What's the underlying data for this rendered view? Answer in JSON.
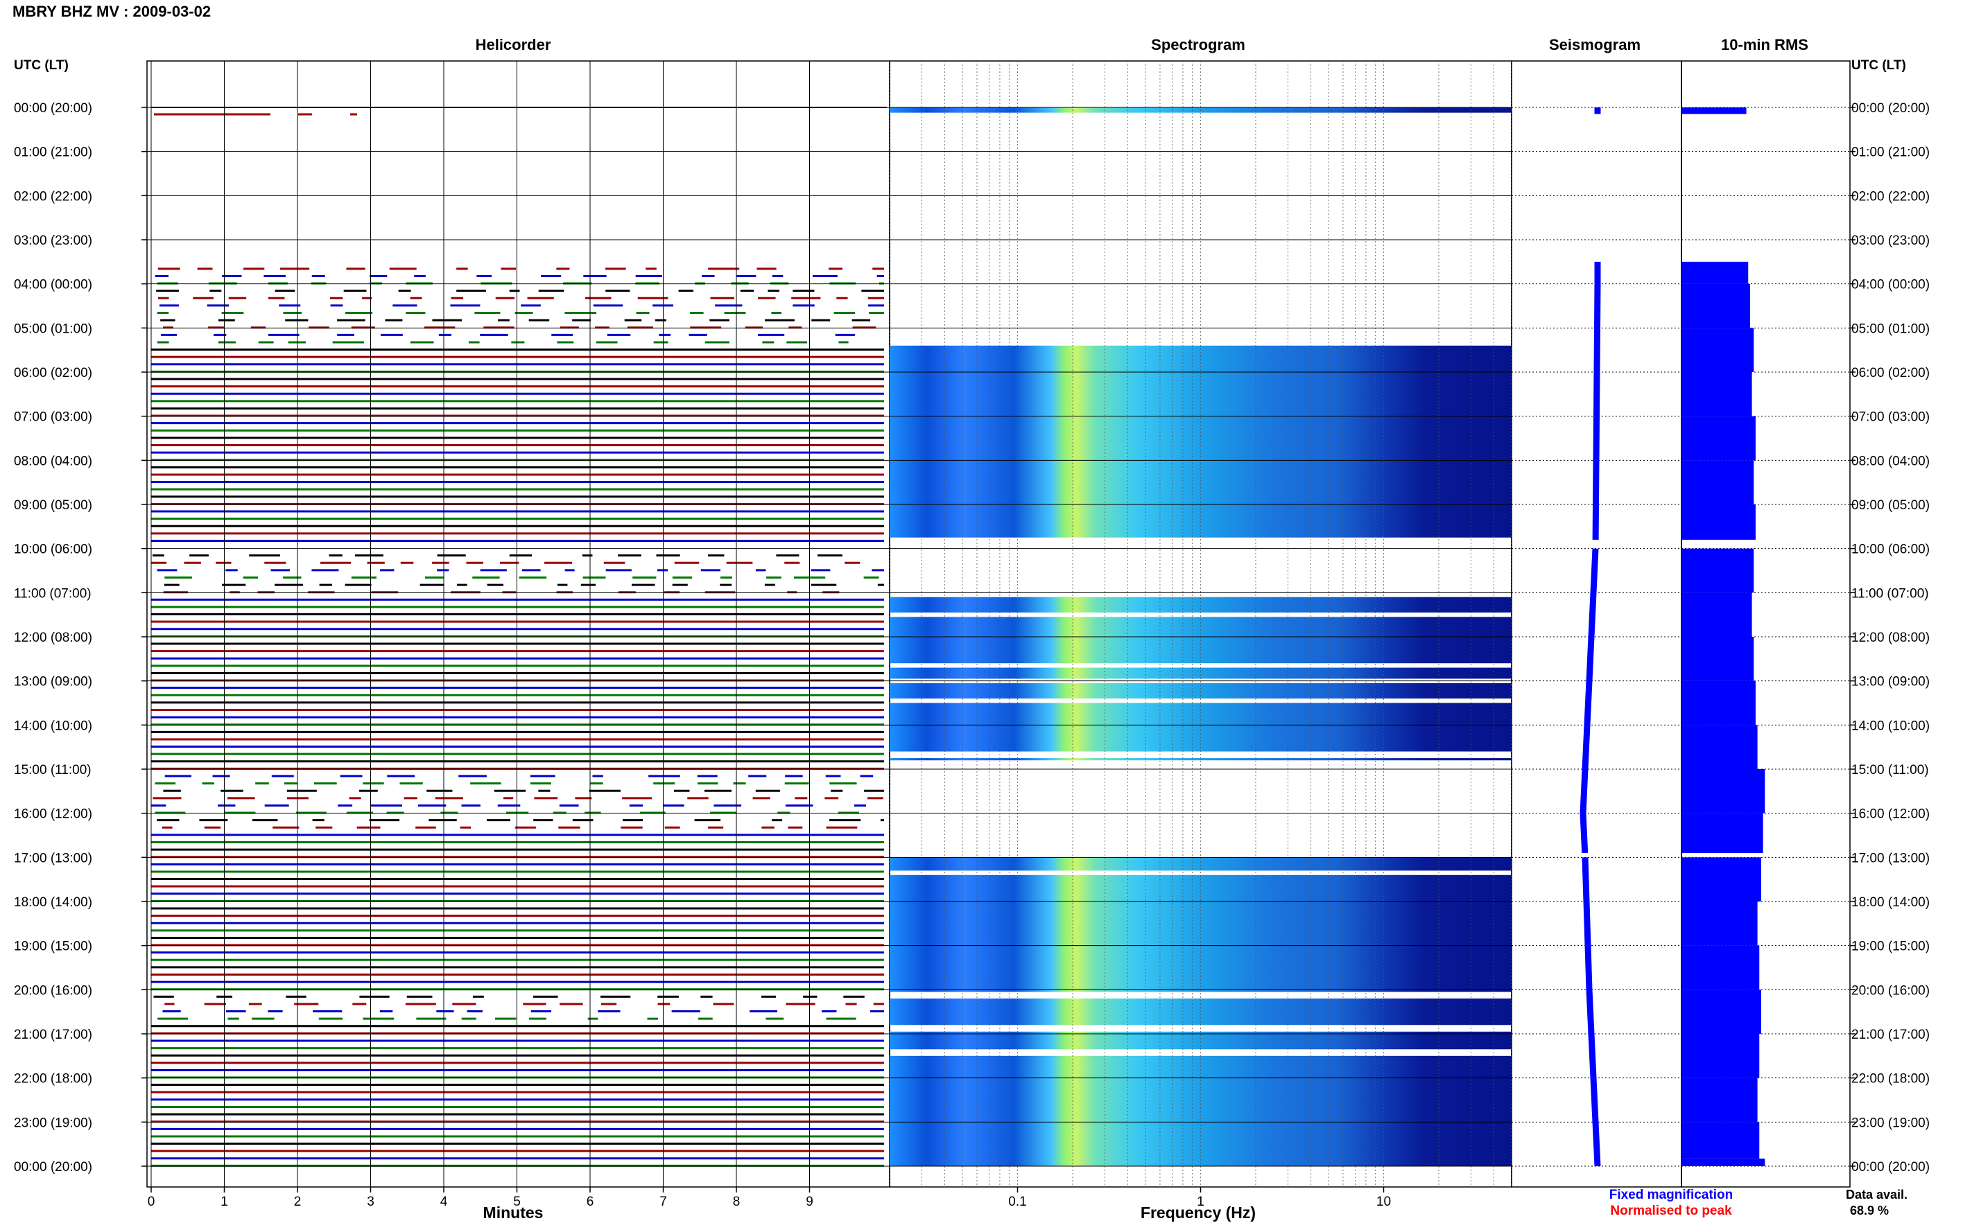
{
  "header": {
    "station_title": "MBRY BHZ MV : 2009-03-02"
  },
  "panels": {
    "helicorder": "Helicorder",
    "spectrogram": "Spectrogram",
    "seismogram": "Seismogram",
    "rms": "10-min RMS"
  },
  "axis": {
    "left_time_header": "UTC (LT)",
    "right_time_header": "UTC (LT)",
    "minutes_label": "Minutes",
    "frequency_label": "Frequency (Hz)"
  },
  "legend": {
    "fixed_label": "Fixed magnification",
    "fixed_color": "#0000ff",
    "normalised_label": "Normalised to peak",
    "normalised_color": "#ff0000"
  },
  "data_avail": {
    "label": "Data avail.",
    "value": "68.9 %"
  },
  "colors": {
    "trace_black": "#000000",
    "trace_red": "#990000",
    "trace_blue": "#0000cc",
    "trace_green": "#007700",
    "rms_bar": "#0000ff",
    "grid": "#000000"
  },
  "chart_data": {
    "type": "heatmap",
    "title": "MBRY BHZ MV : 2009-03-02",
    "hour_labels": [
      "00:00 (20:00)",
      "01:00 (21:00)",
      "02:00 (22:00)",
      "03:00 (23:00)",
      "04:00 (00:00)",
      "05:00 (01:00)",
      "06:00 (02:00)",
      "07:00 (03:00)",
      "08:00 (04:00)",
      "09:00 (05:00)",
      "10:00 (06:00)",
      "11:00 (07:00)",
      "12:00 (08:00)",
      "13:00 (09:00)",
      "14:00 (10:00)",
      "15:00 (11:00)",
      "16:00 (12:00)",
      "17:00 (13:00)",
      "18:00 (14:00)",
      "19:00 (15:00)",
      "20:00 (16:00)",
      "21:00 (17:00)",
      "22:00 (18:00)",
      "23:00 (19:00)",
      "00:00 (20:00)"
    ],
    "minutes_ticks": [
      0,
      1,
      2,
      3,
      4,
      5,
      6,
      7,
      8,
      9
    ],
    "minutes_range": [
      0,
      10
    ],
    "frequency_ticks": [
      0.1,
      1,
      10
    ],
    "frequency_range": [
      0.02,
      50
    ],
    "frequency_scale": "log",
    "data_availability_percent": 68.9,
    "data_segments_utc_hours": [
      [
        0.0,
        0.15
      ],
      [
        3.5,
        9.8
      ],
      [
        10.0,
        16.9
      ],
      [
        17.0,
        24.0
      ]
    ],
    "spectrogram_segments_utc_hours": [
      [
        0.0,
        0.12
      ],
      [
        5.4,
        9.75
      ],
      [
        11.1,
        11.45
      ],
      [
        11.55,
        12.6
      ],
      [
        12.7,
        12.95
      ],
      [
        13.05,
        13.4
      ],
      [
        13.5,
        14.6
      ],
      [
        14.75,
        14.8
      ],
      [
        17.0,
        17.3
      ],
      [
        17.4,
        20.05
      ],
      [
        20.2,
        20.8
      ],
      [
        20.95,
        21.35
      ],
      [
        21.5,
        24.0
      ]
    ],
    "seismogram_x_drift": [
      {
        "hour": 0.0,
        "offset": 0.0
      },
      {
        "hour": 4.0,
        "offset": 0.0
      },
      {
        "hour": 10.0,
        "offset": -0.5
      },
      {
        "hour": 16.0,
        "offset": -3.5
      },
      {
        "hour": 17.0,
        "offset": -3.0
      },
      {
        "hour": 20.0,
        "offset": -2.0
      },
      {
        "hour": 24.0,
        "offset": 0.0
      }
    ],
    "rms_10min": [
      {
        "hour": 0.0,
        "value": 0.7
      },
      {
        "hour": 0.17,
        "value": 0.9
      },
      {
        "hour": 3.5,
        "value": 0.72
      },
      {
        "hour": 4.0,
        "value": 0.74
      },
      {
        "hour": 5.0,
        "value": 0.78
      },
      {
        "hour": 6.0,
        "value": 0.76
      },
      {
        "hour": 7.0,
        "value": 0.8
      },
      {
        "hour": 8.0,
        "value": 0.78
      },
      {
        "hour": 9.0,
        "value": 0.8
      },
      {
        "hour": 10.0,
        "value": 0.78
      },
      {
        "hour": 11.0,
        "value": 0.76
      },
      {
        "hour": 12.0,
        "value": 0.78
      },
      {
        "hour": 13.0,
        "value": 0.8
      },
      {
        "hour": 14.0,
        "value": 0.82
      },
      {
        "hour": 15.0,
        "value": 0.9
      },
      {
        "hour": 16.0,
        "value": 0.88
      },
      {
        "hour": 17.0,
        "value": 0.86
      },
      {
        "hour": 18.0,
        "value": 0.82
      },
      {
        "hour": 19.0,
        "value": 0.84
      },
      {
        "hour": 20.0,
        "value": 0.86
      },
      {
        "hour": 21.0,
        "value": 0.84
      },
      {
        "hour": 22.0,
        "value": 0.82
      },
      {
        "hour": 23.0,
        "value": 0.84
      },
      {
        "hour": 23.83,
        "value": 0.9
      }
    ]
  }
}
